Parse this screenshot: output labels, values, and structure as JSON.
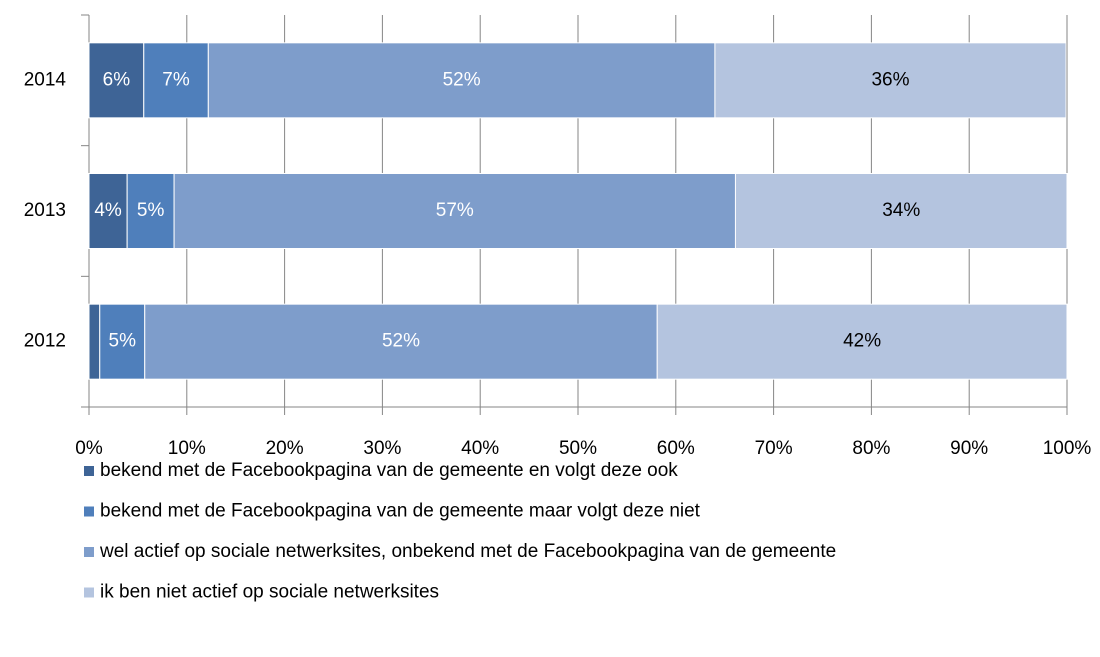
{
  "chart_data": {
    "type": "stacked-barh",
    "categories": [
      "2014",
      "2013",
      "2012"
    ],
    "series": [
      {
        "name": "bekend met de Facebookpagina van de gemeente en volgt deze ook",
        "color": "#3e6496",
        "label_color": "#ffffff",
        "values": [
          5.6,
          3.9,
          1.1
        ],
        "value_labels": [
          "6%",
          "4%",
          null
        ]
      },
      {
        "name": "bekend met de Facebookpagina van de gemeente maar volgt deze niet",
        "color": "#4f7fbb",
        "label_color": "#ffffff",
        "values": [
          6.6,
          4.8,
          4.6
        ],
        "value_labels": [
          "7%",
          "5%",
          "5%"
        ]
      },
      {
        "name": "wel actief op sociale netwerksites, onbekend met de Facebookpagina van de gemeente",
        "color": "#7e9dcb",
        "label_color": "#ffffff",
        "values": [
          51.8,
          57.4,
          52.4
        ],
        "value_labels": [
          "52%",
          "57%",
          "52%"
        ]
      },
      {
        "name": "ik ben niet actief op sociale netwerksites",
        "color": "#b4c4df",
        "label_color": "#000000",
        "values": [
          35.9,
          33.9,
          41.9
        ],
        "value_labels": [
          "36%",
          "34%",
          "42%"
        ]
      }
    ],
    "xlim": [
      0,
      100
    ],
    "xticks": [
      {
        "value": 0,
        "label": "0%"
      },
      {
        "value": 10,
        "label": "10%"
      },
      {
        "value": 20,
        "label": "20%"
      },
      {
        "value": 30,
        "label": "30%"
      },
      {
        "value": 40,
        "label": "40%"
      },
      {
        "value": 50,
        "label": "50%"
      },
      {
        "value": 60,
        "label": "60%"
      },
      {
        "value": 70,
        "label": "70%"
      },
      {
        "value": 80,
        "label": "80%"
      },
      {
        "value": 90,
        "label": "90%"
      },
      {
        "value": 100,
        "label": "100%"
      }
    ],
    "grid": true,
    "legend": "bottom"
  }
}
